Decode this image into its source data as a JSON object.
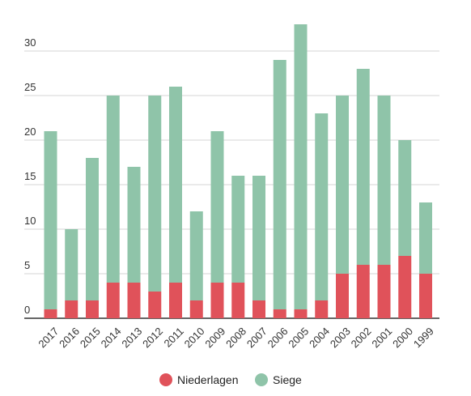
{
  "chart_data": {
    "type": "bar",
    "stacked": true,
    "categories": [
      "2017",
      "2016",
      "2015",
      "2014",
      "2013",
      "2012",
      "2011",
      "2010",
      "2009",
      "2008",
      "2007",
      "2006",
      "2005",
      "2004",
      "2003",
      "2002",
      "2001",
      "2000",
      "1999"
    ],
    "series": [
      {
        "name": "Niederlagen",
        "color": "#e0525a",
        "values": [
          1,
          2,
          2,
          4,
          4,
          3,
          4,
          2,
          4,
          4,
          2,
          1,
          1,
          2,
          5,
          6,
          6,
          7,
          5
        ]
      },
      {
        "name": "Siege",
        "color": "#8fc4a9",
        "values": [
          20,
          8,
          16,
          21,
          13,
          22,
          22,
          10,
          17,
          12,
          14,
          28,
          32,
          21,
          20,
          22,
          19,
          13,
          8
        ]
      }
    ],
    "ylim": [
      0,
      33
    ],
    "yticks": [
      0,
      5,
      10,
      15,
      20,
      25,
      30
    ],
    "grid": true,
    "legend": "bottom",
    "xlabel": "",
    "ylabel": ""
  }
}
